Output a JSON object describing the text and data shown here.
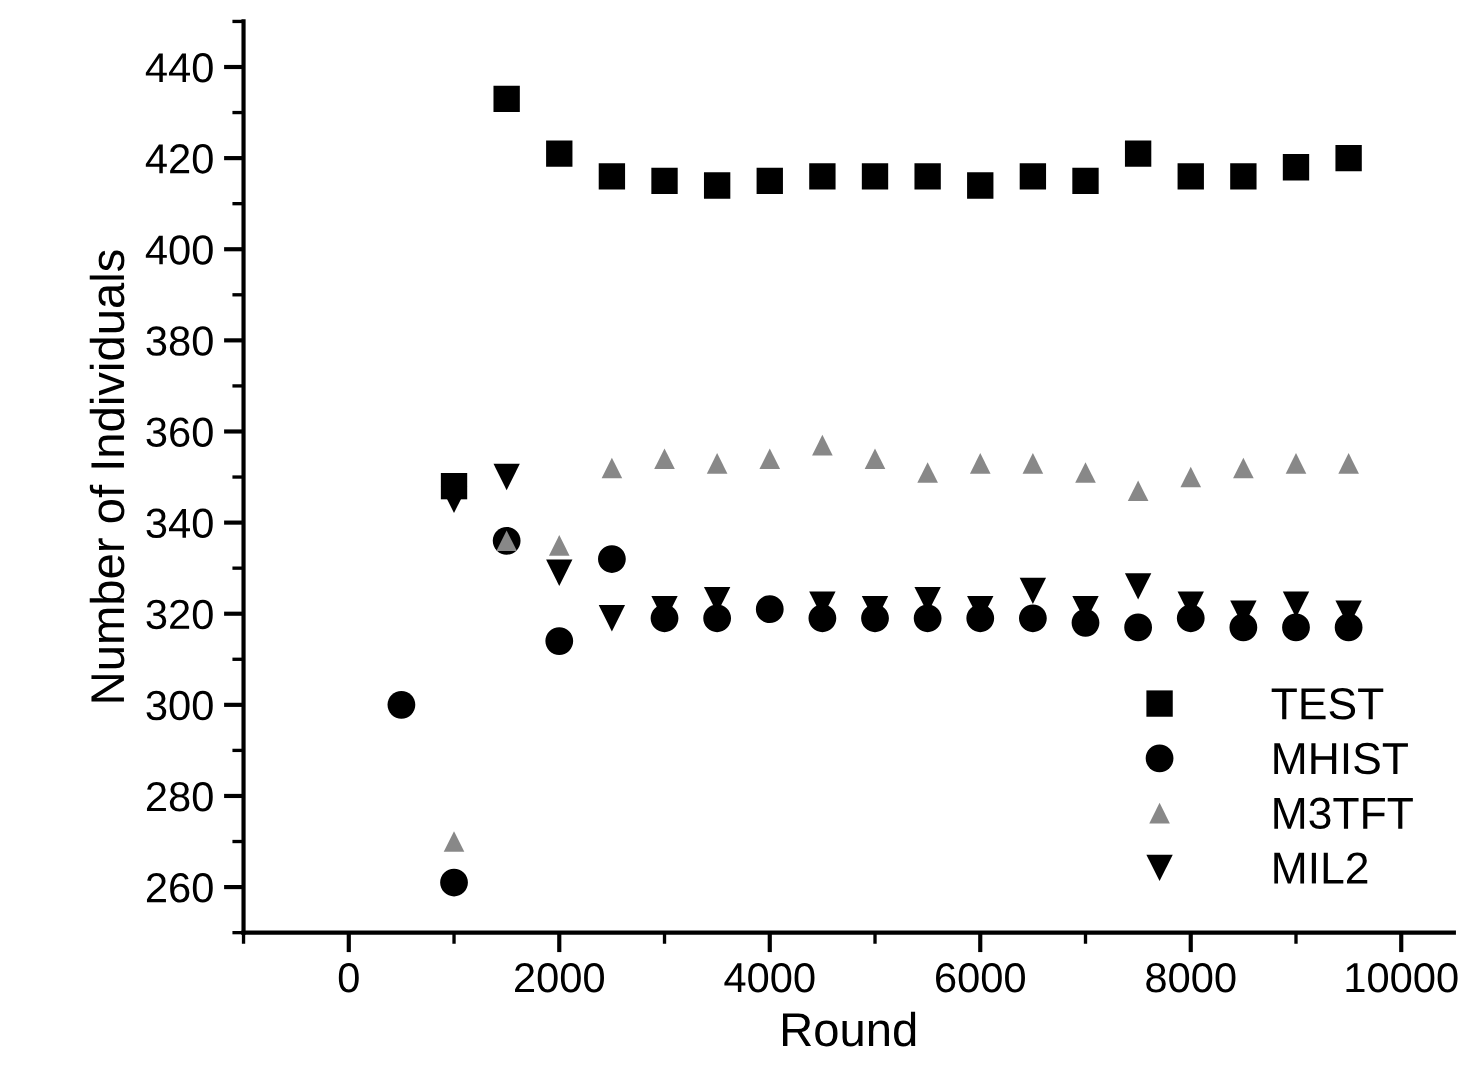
{
  "chart_data": {
    "type": "scatter",
    "xlabel": "Round",
    "ylabel": "Number of Individuals",
    "x": [
      500,
      1000,
      1500,
      2000,
      2500,
      3000,
      3500,
      4000,
      4500,
      5000,
      5500,
      6000,
      6500,
      7000,
      7500,
      8000,
      8500,
      9000,
      9500
    ],
    "series": [
      {
        "name": "TEST",
        "color": "#000000",
        "marker": "square",
        "values": [
          null,
          348,
          433,
          421,
          416,
          415,
          414,
          415,
          416,
          416,
          416,
          414,
          416,
          415,
          421,
          416,
          416,
          418,
          420
        ]
      },
      {
        "name": "MHIST",
        "color": "#000000",
        "marker": "circle",
        "values": [
          300,
          261,
          336,
          314,
          332,
          319,
          319,
          321,
          319,
          319,
          319,
          319,
          319,
          318,
          317,
          319,
          317,
          317,
          317
        ]
      },
      {
        "name": "M3TFT",
        "color": "#888888",
        "marker": "triangle",
        "values": [
          null,
          270,
          336,
          335,
          352,
          354,
          353,
          354,
          357,
          354,
          351,
          353,
          353,
          351,
          347,
          350,
          352,
          353,
          353
        ]
      },
      {
        "name": "MIL2",
        "color": "#000000",
        "marker": "triangle_down",
        "values": [
          null,
          345,
          350,
          329,
          319,
          321,
          323,
          null,
          322,
          321,
          323,
          321,
          325,
          321,
          326,
          322,
          320,
          322,
          320
        ]
      }
    ],
    "xlim": [
      -1000,
      10500
    ],
    "xticks": [
      0,
      2000,
      4000,
      6000,
      8000,
      10000
    ],
    "ylim": [
      250,
      450
    ],
    "yticks": [
      260,
      280,
      300,
      320,
      340,
      360,
      380,
      400,
      420,
      440
    ],
    "grid": false,
    "legend": "bottom right"
  }
}
